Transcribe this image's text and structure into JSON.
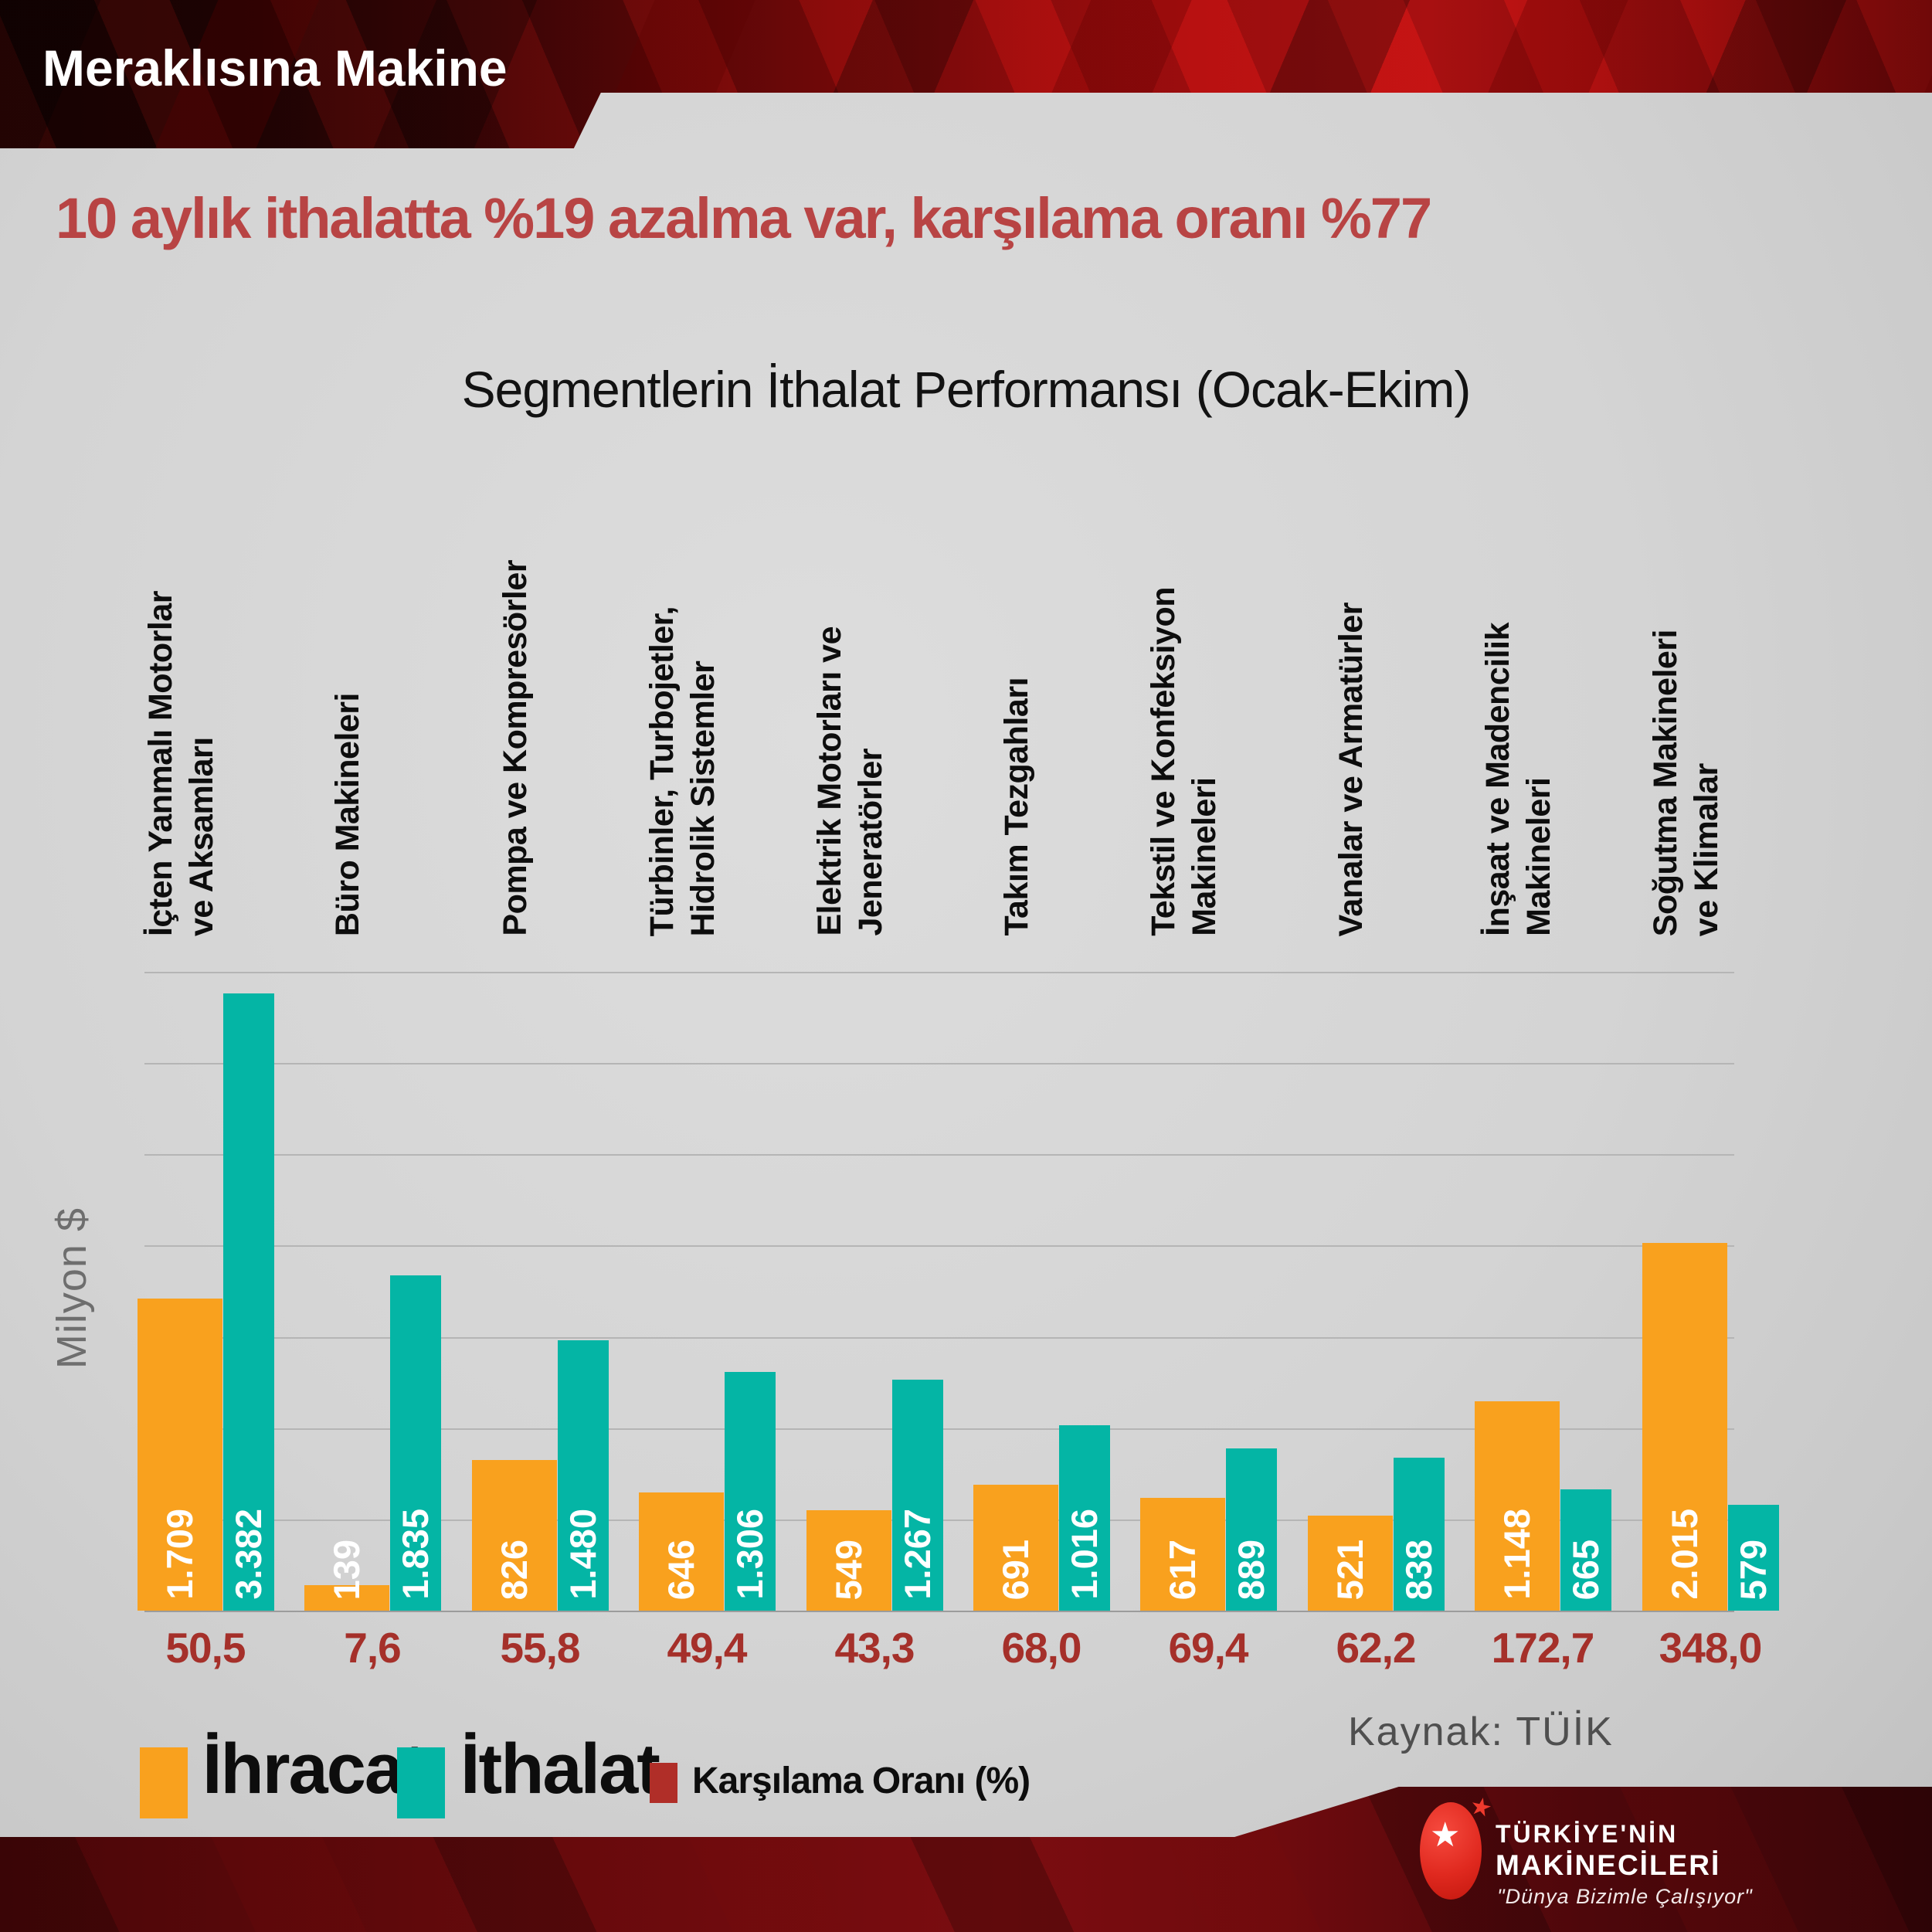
{
  "header": {
    "band_title": "Meraklısına Makine",
    "headline": "10 aylık ithalatta %19 azalma var, karşılama oranı %77"
  },
  "chart_data": {
    "type": "bar",
    "title": "Segmentlerin İthalat Performansı (Ocak-Ekim)",
    "ylabel": "Milyon $",
    "ylim": [
      0,
      3500
    ],
    "grid_step": 500,
    "grid": "on",
    "legend_position": "bottom",
    "categories": [
      [
        "İçten Yanmalı Motorlar",
        "ve Aksamları"
      ],
      [
        "Büro Makineleri"
      ],
      [
        "Pompa ve Kompresörler"
      ],
      [
        "Türbinler, Turbojetler,",
        "Hidrolik Sistemler"
      ],
      [
        "Elektrik Motorları ve",
        "Jeneratörler"
      ],
      [
        "Takım Tezgahları"
      ],
      [
        "Tekstil ve Konfeksiyon",
        "Makineleri"
      ],
      [
        "Vanalar ve Armatürler"
      ],
      [
        "İnşaat ve Madencilik",
        "Makineleri"
      ],
      [
        "Soğutma Makineleri",
        "ve Klimalar"
      ]
    ],
    "series": [
      {
        "name": "İhracat",
        "color": "#f9a11e",
        "values": [
          1709,
          139,
          826,
          646,
          549,
          691,
          617,
          521,
          1148,
          2015
        ],
        "labels": [
          "1.709",
          "139",
          "826",
          "646",
          "549",
          "691",
          "617",
          "521",
          "1.148",
          "2.015"
        ]
      },
      {
        "name": "İthalat",
        "color": "#04b5a5",
        "values": [
          3382,
          1835,
          1480,
          1306,
          1267,
          1016,
          889,
          838,
          665,
          579
        ],
        "labels": [
          "3.382",
          "1.835",
          "1.480",
          "1.306",
          "1.267",
          "1.016",
          "889",
          "838",
          "665",
          "579"
        ]
      }
    ],
    "ratio_series": {
      "name": "Karşılama Oranı (%)",
      "color": "#a5302a",
      "labels": [
        "50,5",
        "7,6",
        "55,8",
        "49,4",
        "43,3",
        "68,0",
        "69,4",
        "62,2",
        "172,7",
        "348,0"
      ]
    }
  },
  "source": {
    "label": "Kaynak: TÜİK"
  },
  "logo": {
    "line1": "TÜRKİYE'NİN",
    "line2": "MAKİNECİLERİ",
    "tagline": "\"Dünya Bizimle Çalışıyor\""
  },
  "colors": {
    "background": "#d4d4d4",
    "banner_red": "#ab0e0f",
    "banner_dark": "#210303",
    "headline_red": "#b84444",
    "export_orange": "#f9a11e",
    "import_teal": "#04b5a5",
    "ratio_red": "#a5302a",
    "value_label": "#ffffff",
    "gridline": "#b5b5b5"
  }
}
